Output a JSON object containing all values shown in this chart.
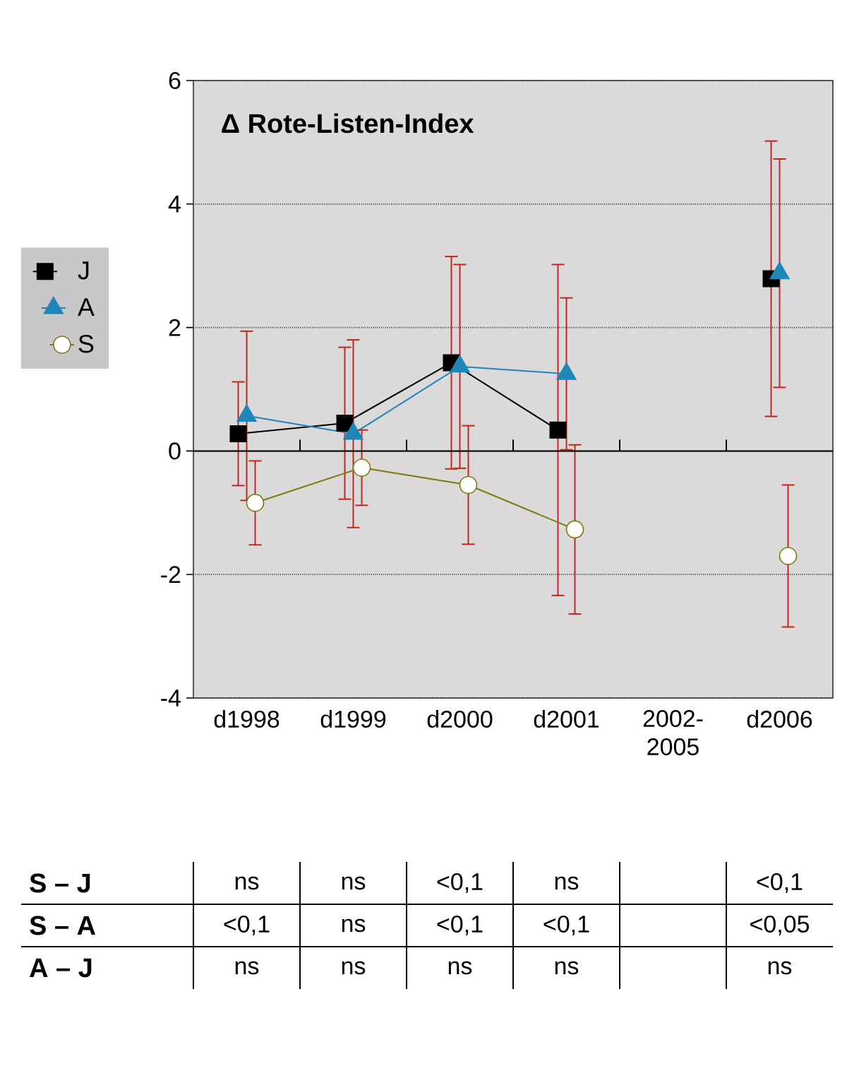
{
  "chart_data": [
    {
      "type": "line",
      "title": "Δ Rote-Listen-Index",
      "categories": [
        "d1998",
        "d1999",
        "d2000",
        "d2001",
        "2002-2005",
        "d2006"
      ],
      "series": [
        {
          "name": "J",
          "color": "#000000",
          "marker": "square",
          "values": [
            0.28,
            0.45,
            1.43,
            0.34,
            null,
            2.79
          ],
          "errors": [
            0.84,
            1.23,
            1.72,
            2.68,
            null,
            2.23
          ]
        },
        {
          "name": "A",
          "color": "#1f86b8",
          "marker": "triangle",
          "values": [
            0.57,
            0.28,
            1.37,
            1.25,
            null,
            2.88
          ],
          "errors": [
            1.37,
            1.52,
            1.65,
            1.23,
            null,
            1.85
          ]
        },
        {
          "name": "S",
          "color": "#7a7a10",
          "marker": "circle",
          "values": [
            -0.84,
            -0.27,
            -0.55,
            -1.27,
            null,
            -1.7
          ],
          "errors": [
            0.68,
            0.61,
            0.96,
            1.37,
            null,
            1.15
          ]
        }
      ],
      "ylim": [
        -4,
        6
      ],
      "yticks": [
        -4,
        -2,
        0,
        2,
        4,
        6
      ],
      "grid": "y",
      "legend": "left",
      "line_style": "solid",
      "ref_lines": [
        {
          "axis": "y",
          "value": 0
        }
      ]
    },
    {
      "type": "other",
      "y_categories": [
        "S – J",
        "S – A",
        "A – J"
      ],
      "cell_labels": [
        [
          "ns",
          "ns",
          "<0,1",
          "ns",
          null,
          "<0,1"
        ],
        [
          "<0,1",
          "ns",
          "<0,1",
          "<0,1",
          null,
          "<0,05"
        ],
        [
          "ns",
          "ns",
          "ns",
          "ns",
          null,
          "ns"
        ]
      ]
    }
  ]
}
